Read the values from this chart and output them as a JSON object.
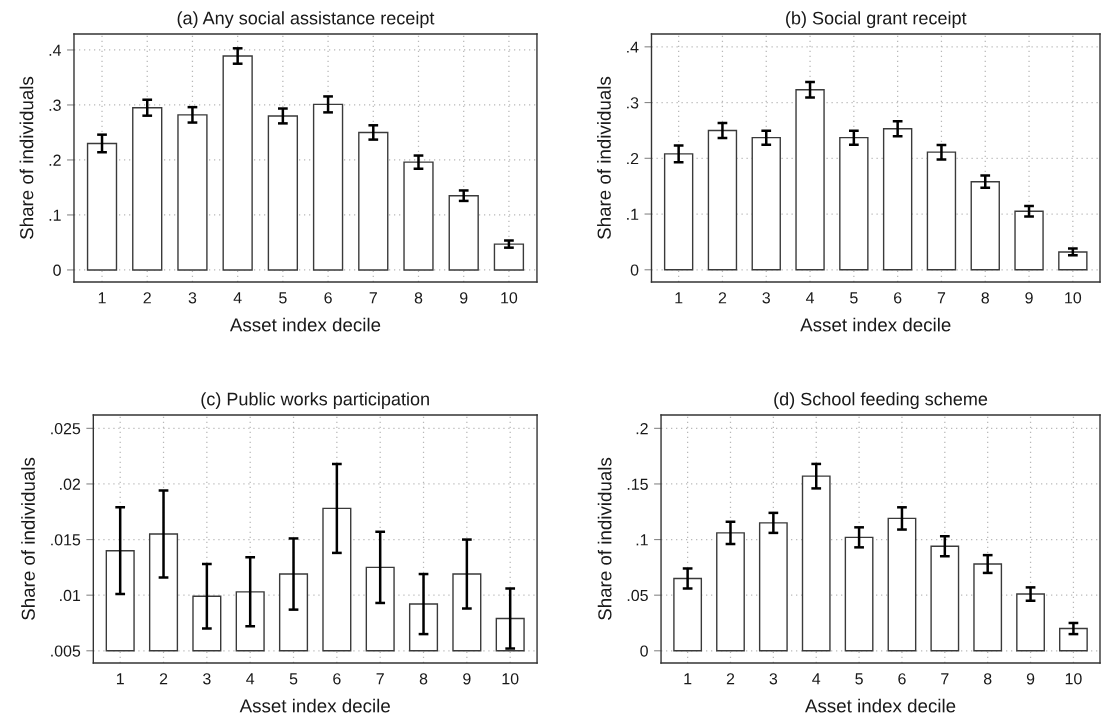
{
  "chart_data": [
    {
      "type": "bar",
      "title": "(a) Any social assistance receipt",
      "xlabel": "Asset index decile",
      "ylabel": "Share of individuals",
      "categories": [
        "1",
        "2",
        "3",
        "4",
        "5",
        "6",
        "7",
        "8",
        "9",
        "10"
      ],
      "values": [
        0.23,
        0.295,
        0.282,
        0.389,
        0.28,
        0.301,
        0.25,
        0.196,
        0.135,
        0.047
      ],
      "errors": [
        0.016,
        0.0145,
        0.014,
        0.014,
        0.0135,
        0.0145,
        0.013,
        0.012,
        0.0095,
        0.0065
      ],
      "color": "#ffffff",
      "ylim": [
        -0.022,
        0.429
      ],
      "yticks": [
        0,
        {
          "value": 0.1,
          "label": ".1"
        },
        {
          "value": 0.2,
          "label": ".2"
        },
        {
          "value": 0.3,
          "label": ".3"
        },
        {
          "value": 0.4,
          "label": ".4"
        }
      ],
      "grid": true
    },
    {
      "type": "bar",
      "title": "(b) Social grant receipt",
      "xlabel": "Asset index decile",
      "ylabel": "Share of individuals",
      "categories": [
        "1",
        "2",
        "3",
        "4",
        "5",
        "6",
        "7",
        "8",
        "9",
        "10"
      ],
      "values": [
        0.208,
        0.25,
        0.237,
        0.323,
        0.237,
        0.253,
        0.211,
        0.158,
        0.105,
        0.032
      ],
      "errors": [
        0.015,
        0.0135,
        0.0125,
        0.014,
        0.0125,
        0.0135,
        0.013,
        0.011,
        0.0095,
        0.006
      ],
      "color": "#ffffff",
      "ylim": [
        -0.022,
        0.423
      ],
      "yticks": [
        0,
        {
          "value": 0.1,
          "label": ".1"
        },
        {
          "value": 0.2,
          "label": ".2"
        },
        {
          "value": 0.3,
          "label": ".3"
        },
        {
          "value": 0.4,
          "label": ".4"
        }
      ],
      "grid": true
    },
    {
      "type": "bar",
      "title": "(c) Public works participation",
      "xlabel": "Asset index decile",
      "ylabel": "Share of individuals",
      "categories": [
        "1",
        "2",
        "3",
        "4",
        "5",
        "6",
        "7",
        "8",
        "9",
        "10"
      ],
      "base": [
        0.005,
        0.005,
        0.005,
        0.005,
        0.005,
        0.005,
        0.005,
        0.005,
        0.005,
        0.005
      ],
      "values": [
        0.009,
        0.0105,
        0.0049,
        0.0053,
        0.0069,
        0.0128,
        0.0075,
        0.0042,
        0.0069,
        0.0029
      ],
      "errors": [
        0.0039,
        0.0039,
        0.0029,
        0.0031,
        0.0032,
        0.004,
        0.0032,
        0.0027,
        0.0031,
        0.0027
      ],
      "color": "#ffffff",
      "ylim": [
        0.0039,
        0.0262
      ],
      "yticks": [
        {
          "value": 0.005,
          "label": ".005"
        },
        {
          "value": 0.01,
          "label": ".01"
        },
        {
          "value": 0.015,
          "label": ".015"
        },
        {
          "value": 0.02,
          "label": ".02"
        },
        {
          "value": 0.025,
          "label": ".025"
        }
      ],
      "grid": true
    },
    {
      "type": "bar",
      "title": "(d) School feeding scheme",
      "xlabel": "Asset index decile",
      "ylabel": "Share of individuals",
      "categories": [
        "1",
        "2",
        "3",
        "4",
        "5",
        "6",
        "7",
        "8",
        "9",
        "10"
      ],
      "values": [
        0.065,
        0.106,
        0.115,
        0.157,
        0.102,
        0.119,
        0.094,
        0.078,
        0.051,
        0.02
      ],
      "errors": [
        0.009,
        0.01,
        0.009,
        0.011,
        0.009,
        0.01,
        0.009,
        0.008,
        0.006,
        0.005
      ],
      "color": "#ffffff",
      "ylim": [
        -0.011,
        0.212
      ],
      "yticks": [
        0,
        {
          "value": 0.05,
          "label": ".05"
        },
        {
          "value": 0.1,
          "label": ".1"
        },
        {
          "value": 0.15,
          "label": ".15"
        },
        {
          "value": 0.2,
          "label": ".2"
        }
      ],
      "grid": true
    }
  ]
}
